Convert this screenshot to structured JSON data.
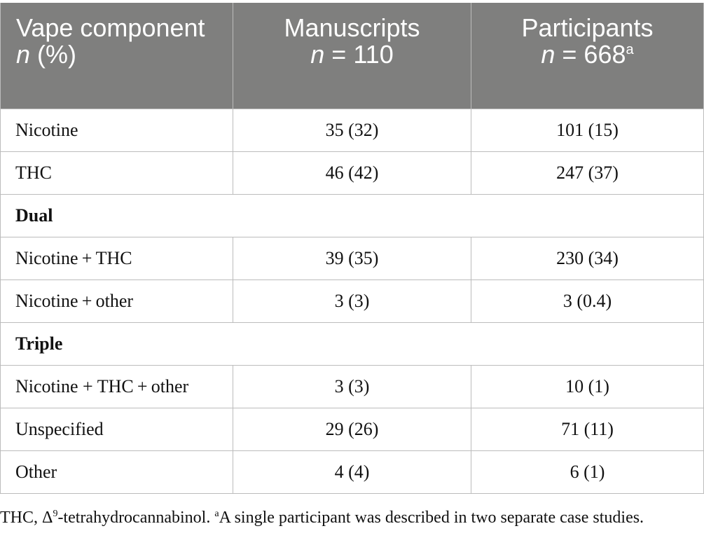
{
  "table": {
    "headers": [
      {
        "text": "Vape component ",
        "italic": "n",
        "after": " (%)"
      },
      {
        "line1": "Manuscripts",
        "italic": "n",
        "value": " = 110",
        "sup": ""
      },
      {
        "line1": "Participants",
        "italic": "n",
        "value": " = 668",
        "sup": "a"
      }
    ],
    "rows": [
      {
        "type": "data",
        "label": "Nicotine",
        "manuscripts": "35 (32)",
        "participants": "101 (15)"
      },
      {
        "type": "data",
        "label": "THC",
        "manuscripts": "46 (42)",
        "participants": "247 (37)"
      },
      {
        "type": "section",
        "label": "Dual"
      },
      {
        "type": "data",
        "label": "Nicotine + THC",
        "manuscripts": "39 (35)",
        "participants": "230 (34)"
      },
      {
        "type": "data",
        "label": "Nicotine + other",
        "manuscripts": "3 (3)",
        "participants": "3 (0.4)"
      },
      {
        "type": "section",
        "label": "Triple"
      },
      {
        "type": "data",
        "label": "Nicotine + THC + other",
        "manuscripts": "3 (3)",
        "participants": "10 (1)"
      },
      {
        "type": "data",
        "label": "Unspecified",
        "manuscripts": "29 (26)",
        "participants": "71 (11)"
      },
      {
        "type": "data",
        "label": "Other",
        "manuscripts": "4 (4)",
        "participants": "6 (1)"
      }
    ]
  },
  "footnote": {
    "part1": "THC, Δ",
    "sup1": "9",
    "part2": "-tetrahydrocannabinol. ",
    "sup2": "a",
    "part3": "A single participant was described in two separate case studies."
  }
}
